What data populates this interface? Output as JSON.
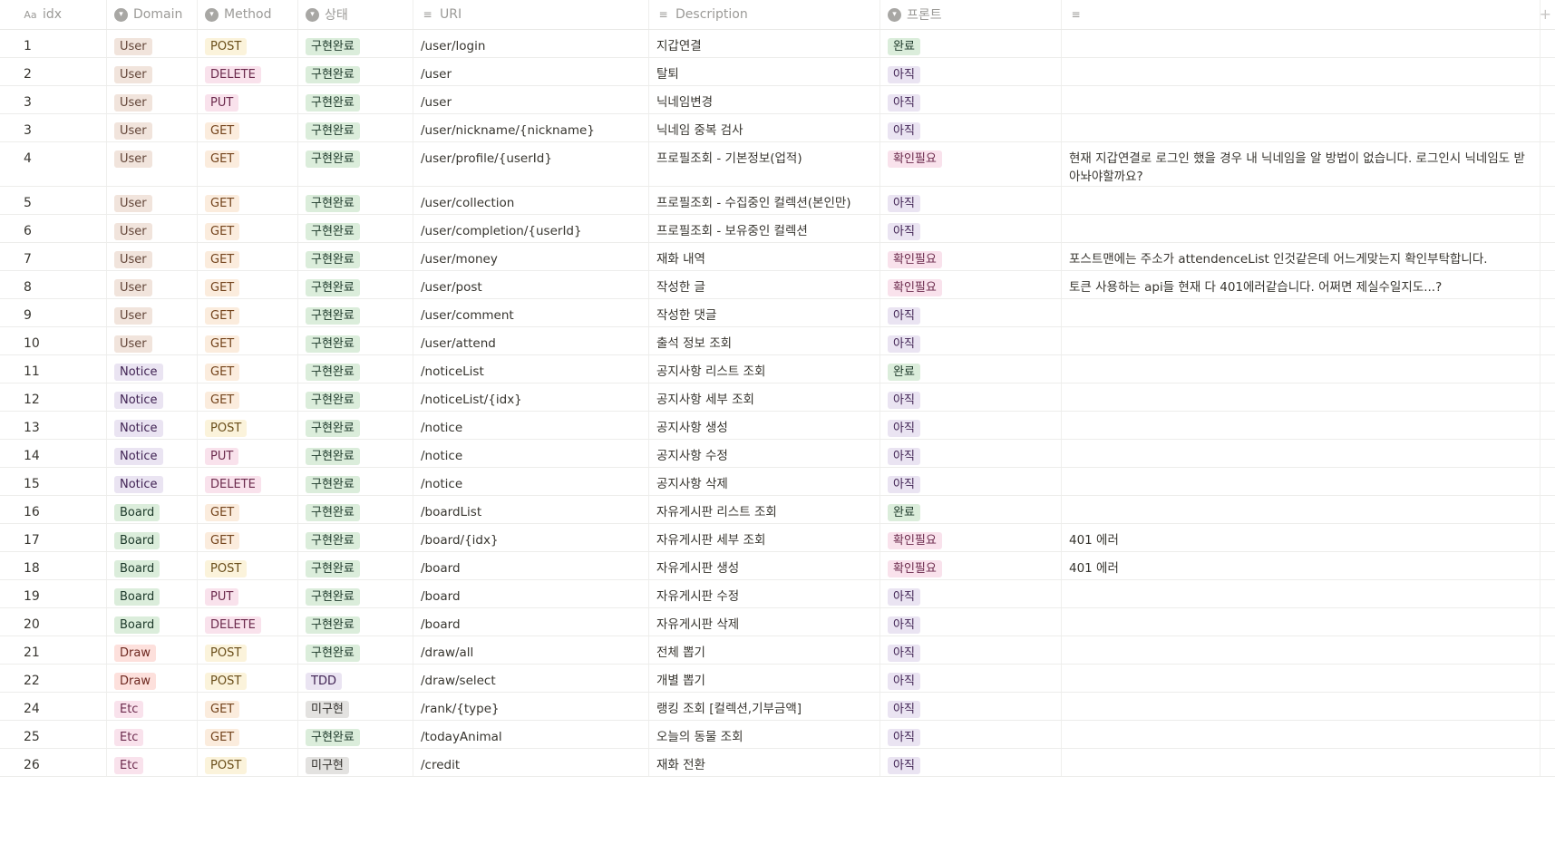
{
  "columns": {
    "idx": "idx",
    "domain": "Domain",
    "method": "Method",
    "status": "상태",
    "uri": "URI",
    "description": "Description",
    "front": "프론트",
    "note": ""
  },
  "colors": {
    "User": "brown",
    "Notice": "purple",
    "Board": "green",
    "Draw": "red",
    "Etc": "pink",
    "POST": "yellow",
    "DELETE": "pink",
    "PUT": "pink",
    "GET": "orange",
    "구현완료": "green",
    "TDD": "purple",
    "미구현": "gray",
    "완료": "green",
    "아직": "purple",
    "확인필요": "pink"
  },
  "rows": [
    {
      "idx": "1",
      "domain": "User",
      "method": "POST",
      "status": "구현완료",
      "uri": "/user/login",
      "desc": "지갑연결",
      "front": "완료",
      "note": ""
    },
    {
      "idx": "2",
      "domain": "User",
      "method": "DELETE",
      "status": "구현완료",
      "uri": "/user",
      "desc": "탈퇴",
      "front": "아직",
      "note": ""
    },
    {
      "idx": "3",
      "domain": "User",
      "method": "PUT",
      "status": "구현완료",
      "uri": "/user",
      "desc": "닉네임변경",
      "front": "아직",
      "note": ""
    },
    {
      "idx": "3",
      "domain": "User",
      "method": "GET",
      "status": "구현완료",
      "uri": "/user/nickname/{nickname}",
      "desc": "닉네임 중복 검사",
      "front": "아직",
      "note": ""
    },
    {
      "idx": "4",
      "domain": "User",
      "method": "GET",
      "status": "구현완료",
      "uri": "/user/profile/{userId}",
      "desc": "프로필조회 - 기본정보(업적)",
      "front": "확인필요",
      "note": "현재 지갑연결로 로그인 했을 경우 내 닉네임을 알 방법이 없습니다. 로그인시 닉네임도 받아놔야할까요?",
      "tall": true
    },
    {
      "idx": "5",
      "domain": "User",
      "method": "GET",
      "status": "구현완료",
      "uri": "/user/collection",
      "desc": "프로필조회 - 수집중인 컬렉션(본인만)",
      "front": "아직",
      "note": ""
    },
    {
      "idx": "6",
      "domain": "User",
      "method": "GET",
      "status": "구현완료",
      "uri": "/user/completion/{userId}",
      "desc": "프로필조회 - 보유중인 컬렉션",
      "front": "아직",
      "note": ""
    },
    {
      "idx": "7",
      "domain": "User",
      "method": "GET",
      "status": "구현완료",
      "uri": "/user/money",
      "desc": "재화 내역",
      "front": "확인필요",
      "note": "포스트맨에는 주소가 attendenceList 인것같은데 어느게맞는지 확인부탁합니다."
    },
    {
      "idx": "8",
      "domain": "User",
      "method": "GET",
      "status": "구현완료",
      "uri": "/user/post",
      "desc": "작성한 글",
      "front": "확인필요",
      "note": "토큰 사용하는 api들 현재 다 401에러같습니다. 어쩌면 제실수일지도...?"
    },
    {
      "idx": "9",
      "domain": "User",
      "method": "GET",
      "status": "구현완료",
      "uri": "/user/comment",
      "desc": "작성한 댓글",
      "front": "아직",
      "note": ""
    },
    {
      "idx": "10",
      "domain": "User",
      "method": "GET",
      "status": "구현완료",
      "uri": "/user/attend",
      "desc": "출석 정보 조회",
      "front": "아직",
      "note": ""
    },
    {
      "idx": "11",
      "domain": "Notice",
      "method": "GET",
      "status": "구현완료",
      "uri": "/noticeList",
      "desc": "공지사항 리스트 조회",
      "front": "완료",
      "note": ""
    },
    {
      "idx": "12",
      "domain": "Notice",
      "method": "GET",
      "status": "구현완료",
      "uri": "/noticeList/{idx}",
      "desc": "공지사항 세부 조회",
      "front": "아직",
      "note": ""
    },
    {
      "idx": "13",
      "domain": "Notice",
      "method": "POST",
      "status": "구현완료",
      "uri": "/notice",
      "desc": "공지사항 생성",
      "front": "아직",
      "note": ""
    },
    {
      "idx": "14",
      "domain": "Notice",
      "method": "PUT",
      "status": "구현완료",
      "uri": "/notice",
      "desc": "공지사항 수정",
      "front": "아직",
      "note": ""
    },
    {
      "idx": "15",
      "domain": "Notice",
      "method": "DELETE",
      "status": "구현완료",
      "uri": "/notice",
      "desc": "공지사항 삭제",
      "front": "아직",
      "note": ""
    },
    {
      "idx": "16",
      "domain": "Board",
      "method": "GET",
      "status": "구현완료",
      "uri": "/boardList",
      "desc": "자유게시판 리스트 조회",
      "front": "완료",
      "note": ""
    },
    {
      "idx": "17",
      "domain": "Board",
      "method": "GET",
      "status": "구현완료",
      "uri": "/board/{idx}",
      "desc": "자유게시판 세부 조회",
      "front": "확인필요",
      "note": "401 에러"
    },
    {
      "idx": "18",
      "domain": "Board",
      "method": "POST",
      "status": "구현완료",
      "uri": "/board",
      "desc": "자유게시판 생성",
      "front": "확인필요",
      "note": "401 에러"
    },
    {
      "idx": "19",
      "domain": "Board",
      "method": "PUT",
      "status": "구현완료",
      "uri": "/board",
      "desc": "자유게시판 수정",
      "front": "아직",
      "note": ""
    },
    {
      "idx": "20",
      "domain": "Board",
      "method": "DELETE",
      "status": "구현완료",
      "uri": "/board",
      "desc": "자유게시판 삭제",
      "front": "아직",
      "note": ""
    },
    {
      "idx": "21",
      "domain": "Draw",
      "method": "POST",
      "status": "구현완료",
      "uri": "/draw/all",
      "desc": "전체 뽑기",
      "front": "아직",
      "note": ""
    },
    {
      "idx": "22",
      "domain": "Draw",
      "method": "POST",
      "status": "TDD",
      "uri": "/draw/select",
      "desc": "개별 뽑기",
      "front": "아직",
      "note": ""
    },
    {
      "idx": "24",
      "domain": "Etc",
      "method": "GET",
      "status": "미구현",
      "uri": "/rank/{type}",
      "desc": "랭킹 조회 [컬렉션,기부금액]",
      "front": "아직",
      "note": ""
    },
    {
      "idx": "25",
      "domain": "Etc",
      "method": "GET",
      "status": "구현완료",
      "uri": "/todayAnimal",
      "desc": "오늘의 동물 조회",
      "front": "아직",
      "note": ""
    },
    {
      "idx": "26",
      "domain": "Etc",
      "method": "POST",
      "status": "미구현",
      "uri": "/credit",
      "desc": "재화 전환",
      "front": "아직",
      "note": ""
    }
  ]
}
